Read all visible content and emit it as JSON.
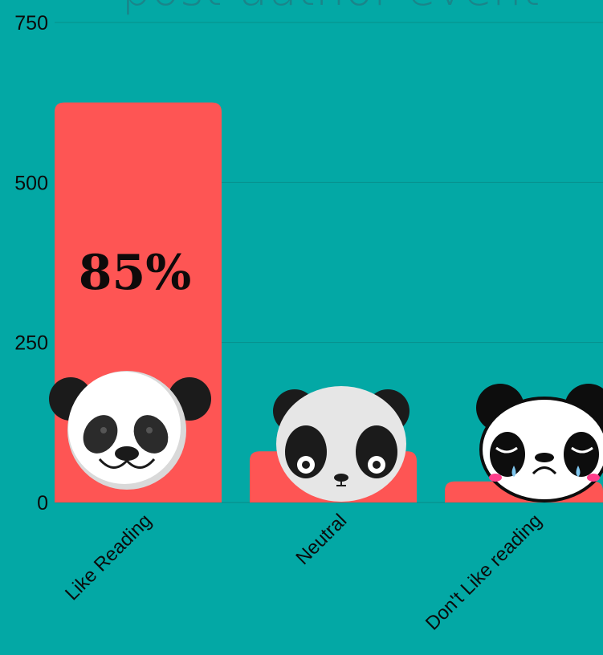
{
  "chart_data": {
    "type": "bar",
    "title": "post-author event",
    "categories": [
      "Like Reading",
      "Neutral",
      "Don't Like reading"
    ],
    "values": [
      625,
      80,
      33
    ],
    "ylim": [
      0,
      750
    ],
    "yticks": [
      0,
      250,
      500,
      750
    ],
    "data_labels": [
      "85%",
      "",
      ""
    ],
    "grid": true,
    "colors": {
      "bar": "#fe5554",
      "background": "#03a8a5",
      "text": "#0b0b0b"
    },
    "icons": [
      "panda-smiling-icon",
      "panda-neutral-icon",
      "panda-crying-icon"
    ]
  }
}
